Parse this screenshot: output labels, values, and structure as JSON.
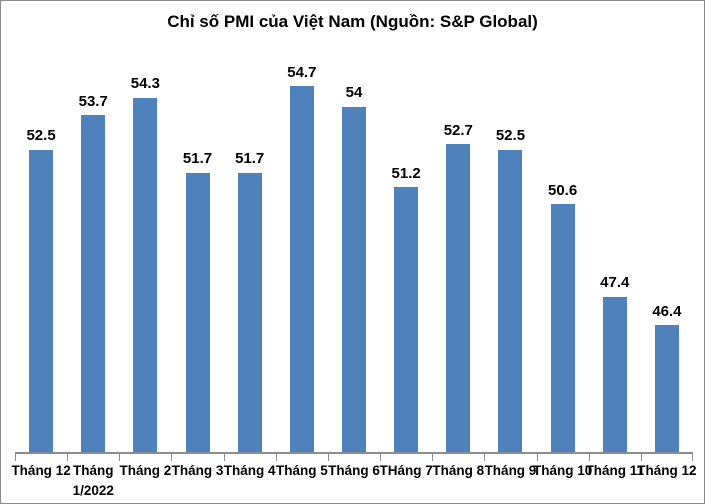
{
  "title": "Chỉ số PMI của Việt Nam (Nguồn: S&P Global)",
  "chart_data": {
    "type": "bar",
    "title": "Chỉ số PMI của Việt Nam (Nguồn: S&P Global)",
    "categories": [
      "Tháng 12",
      "Tháng 1/2022",
      "Tháng 2",
      "Tháng 3",
      "Tháng 4",
      "Tháng 5",
      "Tháng 6",
      "THáng 7",
      "Tháng 8",
      "Tháng 9",
      "Tháng 10",
      "Tháng 11",
      "Tháng 12"
    ],
    "values": [
      52.5,
      53.7,
      54.3,
      51.7,
      51.7,
      54.7,
      54,
      51.2,
      52.7,
      52.5,
      50.6,
      47.4,
      46.4
    ],
    "data_labels": [
      "52.5",
      "53.7",
      "54.3",
      "51.7",
      "51.7",
      "54.7",
      "54",
      "51.2",
      "52.7",
      "52.5",
      "50.6",
      "47.4",
      "46.4"
    ],
    "xlabel": "",
    "ylabel": "",
    "ylim": [
      42,
      56
    ],
    "grid": false,
    "legend": "none",
    "y_axis_visible": false,
    "bar_color": "#4f81bd",
    "axis_color": "#8c8c8c",
    "label_color": "#000000"
  }
}
